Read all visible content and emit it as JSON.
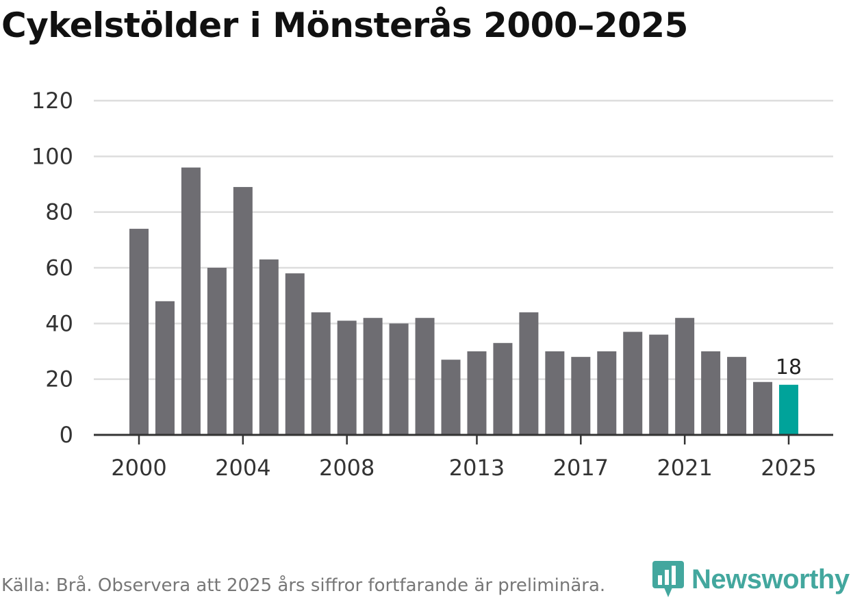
{
  "chart_data": {
    "type": "bar",
    "title": "Cykelstölder i Mönsterås 2000–2025",
    "categories": [
      "2000",
      "2001",
      "2002",
      "2003",
      "2004",
      "2005",
      "2006",
      "2007",
      "2008",
      "2009",
      "2010",
      "2011",
      "2012",
      "2013",
      "2014",
      "2015",
      "2016",
      "2017",
      "2018",
      "2019",
      "2020",
      "2021",
      "2022",
      "2023",
      "2024",
      "2025"
    ],
    "values": [
      74,
      48,
      96,
      60,
      89,
      63,
      58,
      44,
      41,
      42,
      40,
      42,
      27,
      30,
      33,
      44,
      30,
      28,
      30,
      37,
      36,
      42,
      30,
      28,
      19,
      18
    ],
    "x_tick_labels": [
      "2000",
      "2004",
      "2008",
      "2013",
      "2017",
      "2021",
      "2025"
    ],
    "y_ticks": [
      0,
      20,
      40,
      60,
      80,
      100,
      120
    ],
    "ylim": [
      0,
      120
    ],
    "highlight": {
      "category": "2025",
      "label": "18"
    },
    "xlabel": "",
    "ylabel": "",
    "grid": true,
    "colors": {
      "bar": "#6e6d72",
      "highlight": "#00a39a",
      "grid": "#dddddd",
      "axis": "#333333"
    }
  },
  "footer": {
    "source": "Källa: Brå. Observera att 2025 års siffror fortfarande är preliminära.",
    "brand": "Newsworthy",
    "brand_icon": "newsworthy-logo-icon"
  }
}
